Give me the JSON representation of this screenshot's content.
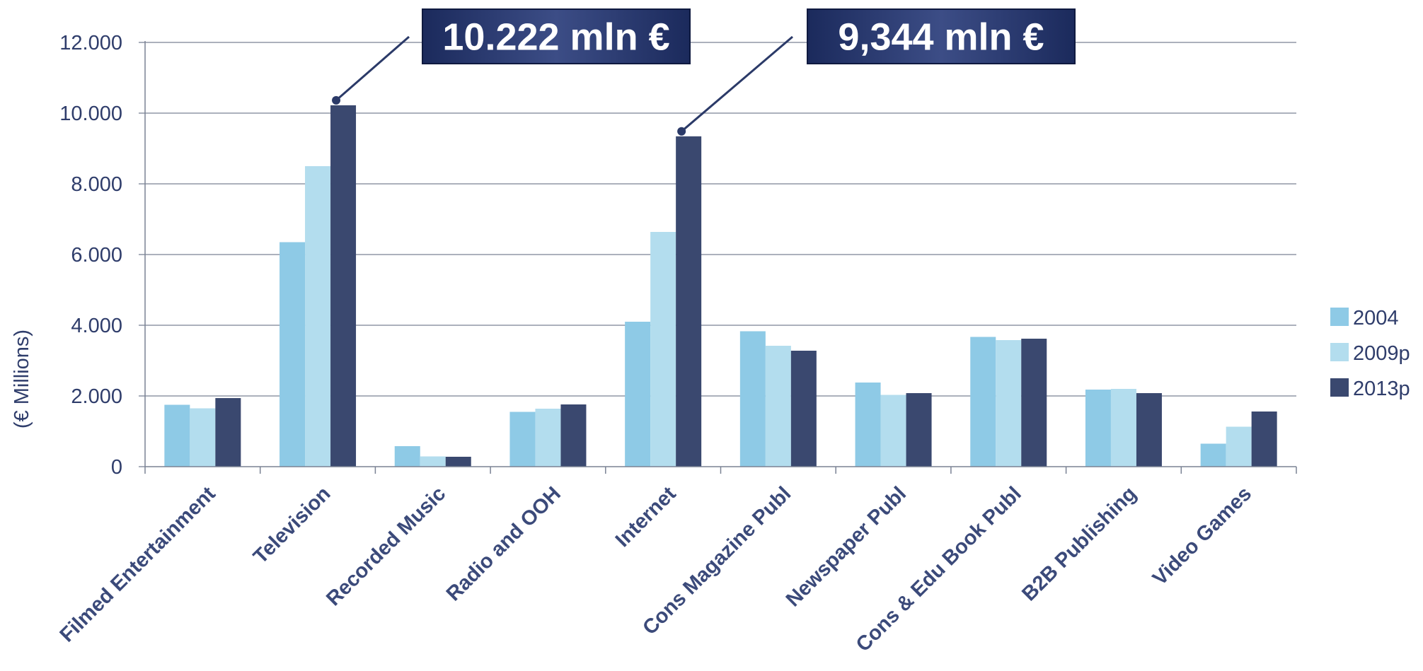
{
  "chart_data": {
    "type": "bar",
    "title": "",
    "xlabel": "",
    "ylabel": "(€ Millions)",
    "ylim": [
      0,
      12000
    ],
    "y_ticks": [
      "0",
      "2.000",
      "4.000",
      "6.000",
      "8.000",
      "10.000",
      "12.000"
    ],
    "grid": true,
    "legend_position": "right",
    "categories": [
      "Filmed Entertainment",
      "Television",
      "Recorded Music",
      "Radio and OOH",
      "Internet",
      "Cons Magazine Publ",
      "Newspaper Publ",
      "Cons & Edu Book Publ",
      "B2B Publishing",
      "Video Games"
    ],
    "series": [
      {
        "name": "2004",
        "color": "#8ecae6",
        "values": [
          1750,
          6350,
          580,
          1550,
          4100,
          3830,
          2380,
          3670,
          2180,
          650
        ]
      },
      {
        "name": "2009p",
        "color": "#b3ddee",
        "values": [
          1650,
          8500,
          290,
          1640,
          6640,
          3420,
          2030,
          3580,
          2200,
          1130
        ]
      },
      {
        "name": "2013p",
        "color": "#3a486f",
        "values": [
          1940,
          10222,
          280,
          1760,
          9344,
          3280,
          2080,
          3620,
          2080,
          1560
        ]
      }
    ],
    "annotations": [
      {
        "text": "10.222 mln €",
        "category": "Television",
        "series": "2013p"
      },
      {
        "text": "9,344 mln €",
        "category": "Internet",
        "series": "2013p"
      }
    ]
  }
}
